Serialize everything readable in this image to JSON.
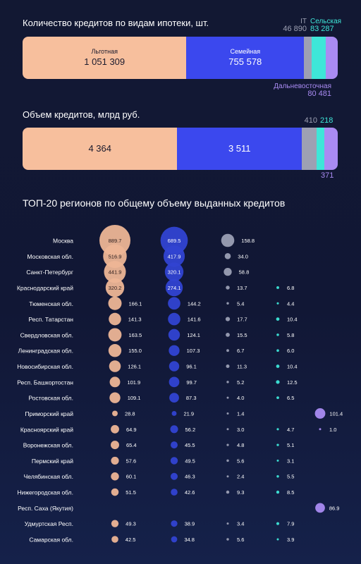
{
  "colors": {
    "lgotnaya": "#f7bf9d",
    "semeynaya": "#3b48ee",
    "it": "#9da0b3",
    "selskaya": "#3ee6d8",
    "dalnevostochnaya": "#a98bf2",
    "bubble_lgot": "#edb596",
    "bubble_sem": "#3243d2",
    "bubble_it": "#9b9fb4",
    "bubble_sel": "#3ee6d8",
    "bubble_dv": "#a98bf2"
  },
  "count_chart": {
    "title": "Количество кредитов по видам ипотеки, шт.",
    "segments": [
      {
        "key": "lgotnaya",
        "name": "Льготная",
        "label": "1 051 309",
        "value": 1051309
      },
      {
        "key": "semeynaya",
        "name": "Семейная",
        "label": "755 578",
        "value": 755578
      },
      {
        "key": "it",
        "name": "IT",
        "label": "46 890",
        "value": 46890
      },
      {
        "key": "selskaya",
        "name": "Сельская",
        "label": "83 287",
        "value": 83287
      },
      {
        "key": "dalnevostochnaya",
        "name": "Дальневосточная",
        "label": "80 481",
        "value": 80481
      }
    ]
  },
  "volume_chart": {
    "title": "Объем кредитов, млрд руб.",
    "segments": [
      {
        "key": "lgotnaya",
        "label": "4 364",
        "value": 4364
      },
      {
        "key": "semeynaya",
        "label": "3 511",
        "value": 3511
      },
      {
        "key": "it",
        "label": "410",
        "value": 410
      },
      {
        "key": "selskaya",
        "label": "218",
        "value": 218
      },
      {
        "key": "dalnevostochnaya",
        "label": "371",
        "value": 371
      }
    ]
  },
  "chart_data": {
    "type": "scatter",
    "title": "ТОП-20 регионов по общему объему выданных кредитов",
    "series": [
      {
        "name": "Льготная"
      },
      {
        "name": "Семейная"
      },
      {
        "name": "IT"
      },
      {
        "name": "Сельская"
      },
      {
        "name": "Дальневосточная"
      }
    ],
    "regions": [
      {
        "name": "Москва",
        "values": [
          889.7,
          689.5,
          158.8,
          null,
          null
        ]
      },
      {
        "name": "Московская обл.",
        "values": [
          516.9,
          417.9,
          34.0,
          null,
          null
        ]
      },
      {
        "name": "Санкт-Петербург",
        "values": [
          441.9,
          320.1,
          58.8,
          null,
          null
        ]
      },
      {
        "name": "Краснодарский край",
        "values": [
          320.2,
          274.1,
          13.7,
          6.8,
          null
        ]
      },
      {
        "name": "Тюменская обл.",
        "values": [
          166.1,
          144.2,
          5.4,
          4.4,
          null
        ]
      },
      {
        "name": "Респ. Татарстан",
        "values": [
          141.3,
          141.6,
          17.7,
          10.4,
          null
        ]
      },
      {
        "name": "Свердловская обл.",
        "values": [
          163.5,
          124.1,
          15.5,
          5.8,
          null
        ]
      },
      {
        "name": "Ленинградская обл.",
        "values": [
          155.0,
          107.3,
          6.7,
          6.0,
          null
        ]
      },
      {
        "name": "Новосибирская обл.",
        "values": [
          126.1,
          96.1,
          11.3,
          10.4,
          null
        ]
      },
      {
        "name": "Респ. Башкортостан",
        "values": [
          101.9,
          99.7,
          5.2,
          12.5,
          null
        ]
      },
      {
        "name": "Ростовская обл.",
        "values": [
          109.1,
          87.3,
          4.0,
          6.5,
          null
        ]
      },
      {
        "name": "Приморский край",
        "values": [
          28.8,
          21.9,
          1.4,
          null,
          101.4
        ]
      },
      {
        "name": "Красноярский край",
        "values": [
          64.9,
          56.2,
          3.0,
          4.7,
          1.0
        ]
      },
      {
        "name": "Воронежская обл.",
        "values": [
          65.4,
          45.5,
          4.8,
          5.1,
          null
        ]
      },
      {
        "name": "Пермский край",
        "values": [
          57.6,
          49.5,
          5.6,
          3.1,
          null
        ]
      },
      {
        "name": "Челябинская обл.",
        "values": [
          60.1,
          46.3,
          2.4,
          5.5,
          null
        ]
      },
      {
        "name": "Нижегородская обл.",
        "values": [
          51.5,
          42.6,
          9.3,
          8.5,
          null
        ]
      },
      {
        "name": "Респ. Саха (Якутия)",
        "values": [
          null,
          null,
          null,
          null,
          86.9
        ]
      },
      {
        "name": "Удмуртская Респ.",
        "values": [
          49.3,
          38.9,
          3.4,
          7.9,
          null
        ]
      },
      {
        "name": "Самарская обл.",
        "values": [
          42.5,
          34.8,
          5.6,
          3.9,
          null
        ]
      }
    ]
  }
}
